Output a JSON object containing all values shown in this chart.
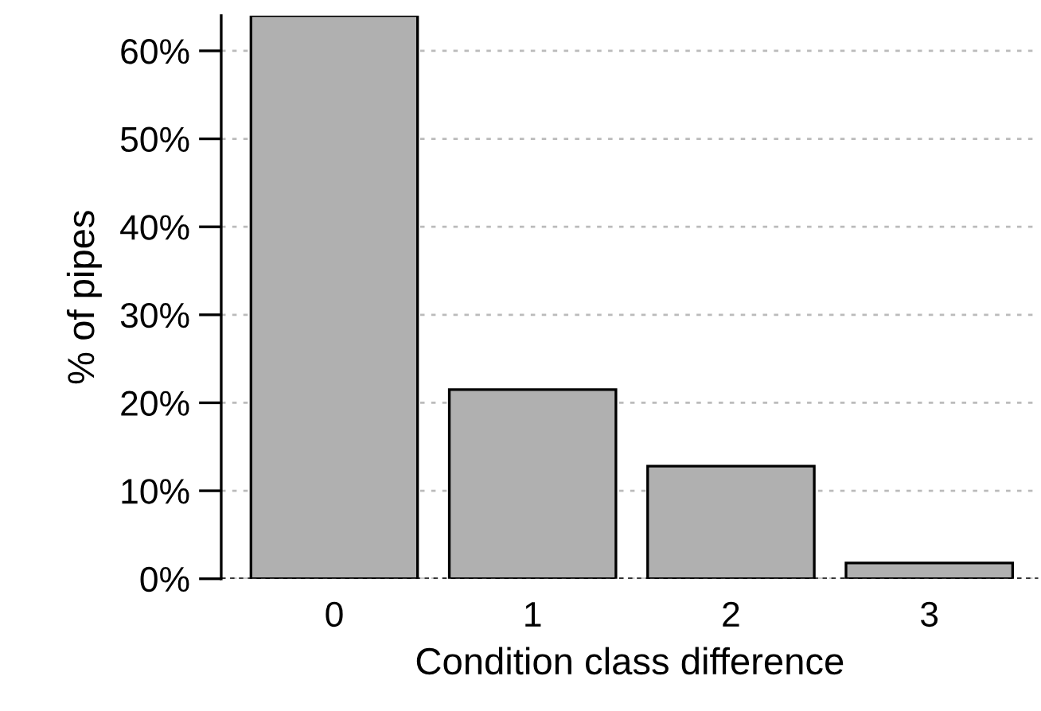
{
  "chart_data": {
    "type": "bar",
    "xlabel": "Condition class difference",
    "ylabel": "% of pipes",
    "categories": [
      "0",
      "1",
      "2",
      "3"
    ],
    "values": [
      64,
      21.5,
      12.8,
      1.8
    ],
    "color": "#b0b0b0",
    "ylim": [
      0,
      64
    ],
    "yticks": [
      {
        "value": 0,
        "label": "0%"
      },
      {
        "value": 10,
        "label": "10%"
      },
      {
        "value": 20,
        "label": "20%"
      },
      {
        "value": 30,
        "label": "30%"
      },
      {
        "value": 40,
        "label": "40%"
      },
      {
        "value": 50,
        "label": "50%"
      },
      {
        "value": 60,
        "label": "60%"
      }
    ],
    "grid": "y"
  }
}
